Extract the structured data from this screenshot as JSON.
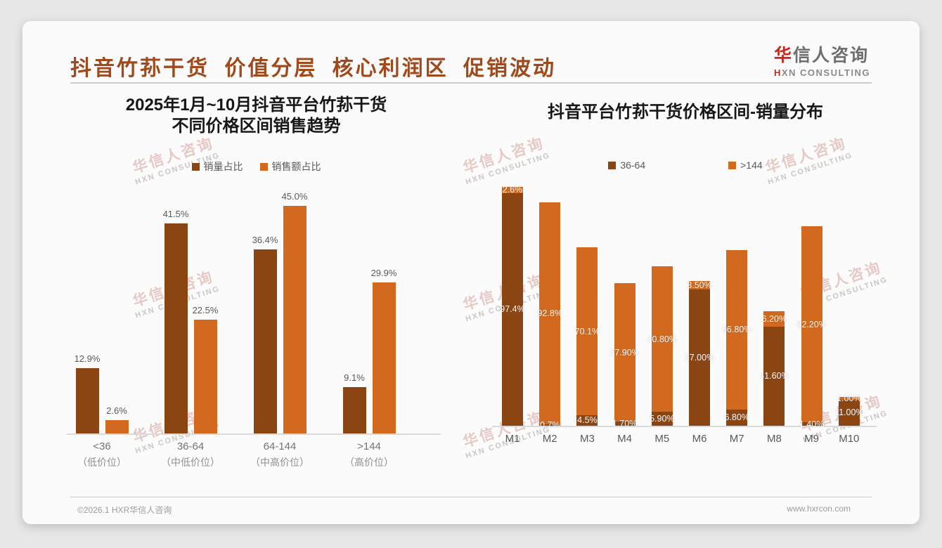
{
  "header": {
    "title": "抖音竹荪干货 价值分层 核心利润区 促销波动",
    "logo": {
      "zh_first": "华",
      "zh_rest": "信人咨询",
      "en_first": "H",
      "en_rest": "XN CONSULTING"
    }
  },
  "watermark": {
    "line1": "华信人咨询",
    "line2": "HXN CONSULTING"
  },
  "footer": {
    "copyright": "©2026.1 HXR华信人咨询",
    "website": "www.hxrcon.com"
  },
  "colors": {
    "dark_brown": "#8B4513",
    "orange": "#D2691E",
    "title_accent": "#A04A1C"
  },
  "chart_data": [
    {
      "type": "bar",
      "title_lines": [
        "2025年1月~10月抖音平台竹荪干货",
        "不同价格区间销售趋势"
      ],
      "categories": [
        {
          "line1": "<36",
          "line2": "（低价位）"
        },
        {
          "line1": "36-64",
          "line2": "（中低价位）"
        },
        {
          "line1": "64-144",
          "line2": "（中高价位）"
        },
        {
          "line1": ">144",
          "line2": "（高价位）"
        }
      ],
      "series": [
        {
          "name": "销量占比",
          "color": "#8B4513",
          "values": [
            12.9,
            41.5,
            36.4,
            9.1
          ],
          "labels": [
            "12.9%",
            "41.5%",
            "36.4%",
            "9.1%"
          ]
        },
        {
          "name": "销售额占比",
          "color": "#D2691E",
          "values": [
            2.6,
            22.5,
            45.0,
            29.9
          ],
          "labels": [
            "2.6%",
            "22.5%",
            "45.0%",
            "29.9%"
          ]
        }
      ],
      "ylabel": "",
      "xlabel": "",
      "ylim": [
        0,
        47
      ],
      "grid": false,
      "legend_position": "top"
    },
    {
      "type": "bar",
      "stacked": true,
      "title": "抖音平台竹荪干货价格区间-销量分布",
      "categories": [
        "M1",
        "M2",
        "M3",
        "M4",
        "M5",
        "M6",
        "M7",
        "M8",
        "M9",
        "M10"
      ],
      "series": [
        {
          "name": "36-64",
          "color": "#8B4513",
          "values": [
            97.4,
            0.7,
            4.5,
            1.7,
            5.9,
            57.0,
            6.8,
            41.6,
            1.4,
            11.0
          ],
          "labels": [
            "97.4%",
            "0.7%",
            "4.5%",
            "1.70%",
            "5.90%",
            "57.00%",
            "6.80%",
            "41.60%",
            "1.40%",
            "11.00%"
          ]
        },
        {
          "name": ">144",
          "color": "#D2691E",
          "values": [
            2.6,
            92.8,
            70.1,
            57.9,
            60.8,
            3.5,
            66.8,
            6.2,
            82.2,
            1.0
          ],
          "labels": [
            "2.6%",
            "92.8%",
            "70.1%",
            "57.90%",
            "60.80%",
            "3.50%",
            "66.80%",
            "6.20%",
            "82.20%",
            "1.00%"
          ]
        }
      ],
      "ylabel": "",
      "xlabel": "",
      "ylim": [
        0,
        100
      ],
      "grid": false,
      "legend_position": "top"
    }
  ]
}
